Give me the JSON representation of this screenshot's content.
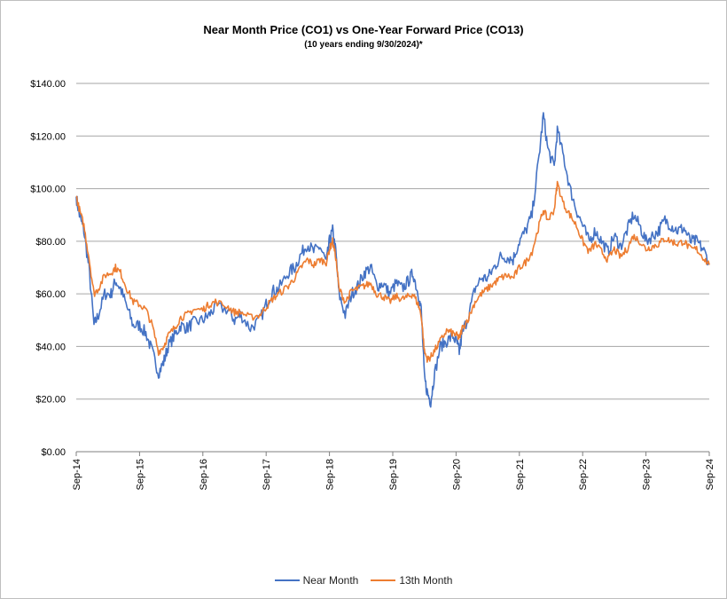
{
  "chart_data": {
    "type": "line",
    "title": "Near Month Price (CO1) vs One-Year Forward Price  (CO13)",
    "subtitle": "(10 years ending  9/30/2024)*",
    "xlabel": "",
    "ylabel": "",
    "ylim": [
      0,
      140
    ],
    "y_ticks": [
      "$0.00",
      "$20.00",
      "$40.00",
      "$60.00",
      "$80.00",
      "$100.00",
      "$120.00",
      "$140.00"
    ],
    "y_tick_values": [
      0,
      20,
      40,
      60,
      80,
      100,
      120,
      140
    ],
    "x_tick_labels": [
      "Sep-14",
      "Sep-15",
      "Sep-16",
      "Sep-17",
      "Sep-18",
      "Sep-19",
      "Sep-20",
      "Sep-21",
      "Sep-22",
      "Sep-23",
      "Sep-24"
    ],
    "x_range_years": [
      0,
      10
    ],
    "grid": true,
    "legend_position": "bottom-center",
    "series": [
      {
        "name": "Near Month",
        "color": "#4472C4",
        "points": [
          [
            0,
            97
          ],
          [
            0.05,
            90
          ],
          [
            0.12,
            84
          ],
          [
            0.2,
            70
          ],
          [
            0.28,
            48
          ],
          [
            0.35,
            52
          ],
          [
            0.45,
            60
          ],
          [
            0.55,
            60
          ],
          [
            0.62,
            65
          ],
          [
            0.7,
            62
          ],
          [
            0.8,
            55
          ],
          [
            0.9,
            48
          ],
          [
            1.0,
            48
          ],
          [
            1.1,
            45
          ],
          [
            1.2,
            38
          ],
          [
            1.3,
            30
          ],
          [
            1.38,
            34
          ],
          [
            1.45,
            40
          ],
          [
            1.55,
            44
          ],
          [
            1.65,
            48
          ],
          [
            1.75,
            47
          ],
          [
            1.85,
            49
          ],
          [
            2.0,
            50
          ],
          [
            2.1,
            52
          ],
          [
            2.2,
            55
          ],
          [
            2.4,
            54
          ],
          [
            2.5,
            50
          ],
          [
            2.6,
            52
          ],
          [
            2.75,
            47
          ],
          [
            2.9,
            50
          ],
          [
            3.0,
            56
          ],
          [
            3.1,
            61
          ],
          [
            3.2,
            62
          ],
          [
            3.35,
            68
          ],
          [
            3.45,
            70
          ],
          [
            3.55,
            75
          ],
          [
            3.65,
            79
          ],
          [
            3.75,
            76
          ],
          [
            3.85,
            78
          ],
          [
            3.95,
            72
          ],
          [
            4.0,
            80
          ],
          [
            4.05,
            84
          ],
          [
            4.1,
            76
          ],
          [
            4.15,
            60
          ],
          [
            4.25,
            52
          ],
          [
            4.35,
            60
          ],
          [
            4.45,
            63
          ],
          [
            4.55,
            68
          ],
          [
            4.65,
            70
          ],
          [
            4.75,
            63
          ],
          [
            4.85,
            64
          ],
          [
            4.95,
            60
          ],
          [
            5.05,
            64
          ],
          [
            5.15,
            62
          ],
          [
            5.25,
            65
          ],
          [
            5.32,
            68
          ],
          [
            5.4,
            60
          ],
          [
            5.45,
            54
          ],
          [
            5.5,
            28
          ],
          [
            5.55,
            22
          ],
          [
            5.6,
            19
          ],
          [
            5.65,
            28
          ],
          [
            5.75,
            40
          ],
          [
            5.85,
            42
          ],
          [
            5.95,
            44
          ],
          [
            6.02,
            41
          ],
          [
            6.05,
            38
          ],
          [
            6.1,
            45
          ],
          [
            6.2,
            52
          ],
          [
            6.3,
            62
          ],
          [
            6.4,
            66
          ],
          [
            6.5,
            66
          ],
          [
            6.6,
            70
          ],
          [
            6.7,
            74
          ],
          [
            6.8,
            74
          ],
          [
            6.9,
            73
          ],
          [
            7.0,
            80
          ],
          [
            7.1,
            84
          ],
          [
            7.2,
            90
          ],
          [
            7.3,
            110
          ],
          [
            7.38,
            128
          ],
          [
            7.45,
            115
          ],
          [
            7.55,
            108
          ],
          [
            7.6,
            122
          ],
          [
            7.7,
            112
          ],
          [
            7.8,
            100
          ],
          [
            7.9,
            92
          ],
          [
            8.0,
            86
          ],
          [
            8.1,
            80
          ],
          [
            8.2,
            84
          ],
          [
            8.3,
            80
          ],
          [
            8.4,
            76
          ],
          [
            8.5,
            82
          ],
          [
            8.6,
            78
          ],
          [
            8.7,
            84
          ],
          [
            8.8,
            90
          ],
          [
            8.9,
            86
          ],
          [
            9.0,
            80
          ],
          [
            9.1,
            82
          ],
          [
            9.2,
            84
          ],
          [
            9.3,
            88
          ],
          [
            9.4,
            86
          ],
          [
            9.5,
            84
          ],
          [
            9.6,
            85
          ],
          [
            9.7,
            80
          ],
          [
            9.8,
            80
          ],
          [
            9.9,
            77
          ],
          [
            10.0,
            72
          ]
        ]
      },
      {
        "name": "13th Month",
        "color": "#ED7D31",
        "points": [
          [
            0,
            97
          ],
          [
            0.05,
            92
          ],
          [
            0.12,
            86
          ],
          [
            0.2,
            74
          ],
          [
            0.28,
            60
          ],
          [
            0.35,
            62
          ],
          [
            0.45,
            67
          ],
          [
            0.55,
            68
          ],
          [
            0.62,
            70
          ],
          [
            0.7,
            68
          ],
          [
            0.8,
            62
          ],
          [
            0.9,
            57
          ],
          [
            1.0,
            56
          ],
          [
            1.1,
            54
          ],
          [
            1.2,
            48
          ],
          [
            1.3,
            38
          ],
          [
            1.38,
            40
          ],
          [
            1.45,
            44
          ],
          [
            1.55,
            47
          ],
          [
            1.65,
            51
          ],
          [
            1.75,
            52
          ],
          [
            1.85,
            54
          ],
          [
            2.0,
            54
          ],
          [
            2.1,
            56
          ],
          [
            2.2,
            57
          ],
          [
            2.4,
            55
          ],
          [
            2.5,
            53
          ],
          [
            2.6,
            53
          ],
          [
            2.75,
            51
          ],
          [
            2.9,
            52
          ],
          [
            3.0,
            55
          ],
          [
            3.1,
            58
          ],
          [
            3.2,
            60
          ],
          [
            3.35,
            63
          ],
          [
            3.45,
            66
          ],
          [
            3.55,
            70
          ],
          [
            3.65,
            73
          ],
          [
            3.75,
            71
          ],
          [
            3.85,
            73
          ],
          [
            3.95,
            72
          ],
          [
            4.0,
            77
          ],
          [
            4.05,
            80
          ],
          [
            4.1,
            74
          ],
          [
            4.15,
            62
          ],
          [
            4.25,
            57
          ],
          [
            4.35,
            61
          ],
          [
            4.45,
            62
          ],
          [
            4.55,
            63
          ],
          [
            4.65,
            64
          ],
          [
            4.75,
            60
          ],
          [
            4.85,
            59
          ],
          [
            4.95,
            57
          ],
          [
            5.05,
            59
          ],
          [
            5.15,
            58
          ],
          [
            5.25,
            59
          ],
          [
            5.32,
            60
          ],
          [
            5.4,
            56
          ],
          [
            5.45,
            52
          ],
          [
            5.5,
            38
          ],
          [
            5.55,
            35
          ],
          [
            5.6,
            36
          ],
          [
            5.65,
            38
          ],
          [
            5.75,
            42
          ],
          [
            5.85,
            46
          ],
          [
            5.95,
            45
          ],
          [
            6.02,
            44
          ],
          [
            6.05,
            43
          ],
          [
            6.1,
            47
          ],
          [
            6.2,
            51
          ],
          [
            6.3,
            57
          ],
          [
            6.4,
            60
          ],
          [
            6.5,
            62
          ],
          [
            6.6,
            64
          ],
          [
            6.7,
            66
          ],
          [
            6.8,
            67
          ],
          [
            6.9,
            66
          ],
          [
            7.0,
            70
          ],
          [
            7.1,
            72
          ],
          [
            7.2,
            76
          ],
          [
            7.3,
            85
          ],
          [
            7.38,
            92
          ],
          [
            7.45,
            88
          ],
          [
            7.55,
            92
          ],
          [
            7.6,
            102
          ],
          [
            7.7,
            94
          ],
          [
            7.8,
            90
          ],
          [
            7.9,
            86
          ],
          [
            8.0,
            80
          ],
          [
            8.1,
            76
          ],
          [
            8.2,
            79
          ],
          [
            8.3,
            76
          ],
          [
            8.4,
            73
          ],
          [
            8.5,
            77
          ],
          [
            8.6,
            74
          ],
          [
            8.7,
            77
          ],
          [
            8.8,
            82
          ],
          [
            8.9,
            80
          ],
          [
            9.0,
            77
          ],
          [
            9.1,
            78
          ],
          [
            9.2,
            79
          ],
          [
            9.3,
            81
          ],
          [
            9.4,
            80
          ],
          [
            9.5,
            79
          ],
          [
            9.6,
            80
          ],
          [
            9.7,
            77
          ],
          [
            9.8,
            77
          ],
          [
            9.9,
            74
          ],
          [
            10.0,
            71
          ]
        ]
      }
    ]
  }
}
